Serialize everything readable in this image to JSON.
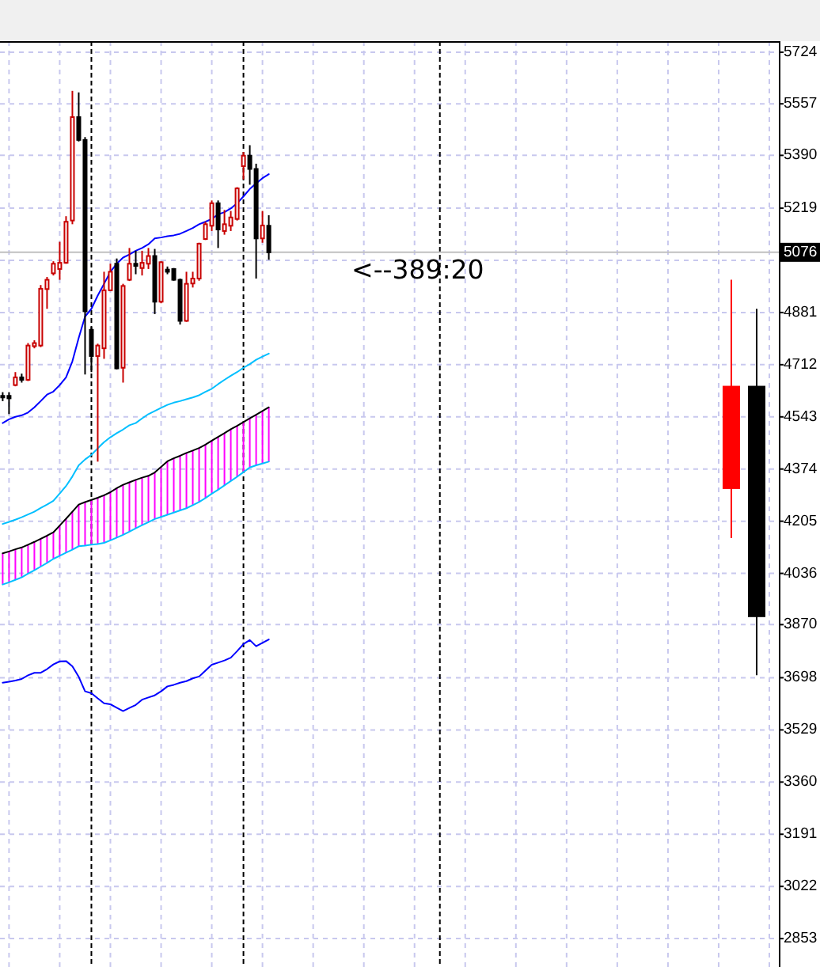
{
  "chart_data": {
    "type": "candlestick",
    "categories": [
      null,
      null,
      null,
      null,
      null,
      null,
      null,
      null,
      null,
      null,
      null,
      null,
      null,
      null,
      null,
      null,
      null,
      null,
      null,
      null,
      null,
      null,
      null,
      null,
      null,
      null,
      null,
      null,
      null,
      null,
      null,
      null,
      null,
      null,
      null,
      null,
      null,
      null,
      null,
      null,
      null,
      null,
      null,
      null,
      null,
      null,
      null,
      null,
      null,
      null,
      null,
      null,
      null,
      null,
      null,
      null,
      null,
      null,
      null,
      null,
      null,
      null,
      null,
      null,
      null,
      null,
      null,
      null,
      null,
      null,
      null,
      null,
      null,
      null,
      null,
      null,
      null,
      null,
      null,
      null,
      null,
      null,
      null,
      null,
      null,
      null,
      null,
      null,
      null,
      null,
      null,
      null,
      null,
      null,
      null,
      null,
      null,
      null,
      null,
      null,
      null,
      null,
      null,
      null,
      null,
      null,
      null,
      null,
      null,
      null,
      null,
      null,
      null,
      null,
      null,
      null,
      null,
      null,
      null,
      null,
      null,
      null,
      null
    ],
    "ohlc": [
      [
        4611,
        4623,
        4594,
        4608
      ],
      [
        4611,
        4623,
        4552,
        4603
      ],
      [
        4646,
        4688,
        4642,
        4671
      ],
      [
        4671,
        4683,
        4654,
        4663
      ],
      [
        4663,
        4782,
        4659,
        4774
      ],
      [
        4772,
        4791,
        4765,
        4782
      ],
      [
        4774,
        4970,
        4769,
        4958
      ],
      [
        4957,
        4996,
        4893,
        4987
      ],
      [
        5008,
        5047,
        5001,
        5039
      ],
      [
        5022,
        5110,
        4987,
        5042
      ],
      [
        5042,
        5193,
        5039,
        5175
      ],
      [
        5179,
        5599,
        5167,
        5514
      ],
      [
        5514,
        5594,
        5435,
        5440
      ],
      [
        5440,
        5449,
        4680,
        4885
      ],
      [
        4825,
        4834,
        4688,
        4740
      ],
      [
        4740,
        4780,
        4398,
        4774
      ],
      [
        4765,
        5013,
        4731,
        4953
      ],
      [
        4953,
        5039,
        4950,
        5013
      ],
      [
        5039,
        5056,
        4697,
        4700
      ],
      [
        4702,
        4974,
        4654,
        4967
      ],
      [
        4987,
        5090,
        4983,
        5039
      ],
      [
        5039,
        5081,
        5005,
        5032
      ],
      [
        5025,
        5081,
        5001,
        5042
      ],
      [
        5039,
        5090,
        5022,
        5064
      ],
      [
        5064,
        5087,
        4876,
        4916
      ],
      [
        4916,
        5047,
        4911,
        5044
      ],
      [
        5020,
        5030,
        5005,
        5013
      ],
      [
        5022,
        5025,
        4984,
        4987
      ],
      [
        4987,
        4991,
        4842,
        4854
      ],
      [
        4854,
        5013,
        4851,
        4974
      ],
      [
        4975,
        5013,
        4962,
        4991
      ],
      [
        4991,
        5107,
        4984,
        5104
      ],
      [
        5119,
        5175,
        5116,
        5167
      ],
      [
        5162,
        5244,
        5145,
        5235
      ],
      [
        5235,
        5244,
        5090,
        5150
      ],
      [
        5145,
        5213,
        5133,
        5167
      ],
      [
        5162,
        5210,
        5145,
        5189
      ],
      [
        5184,
        5287,
        5179,
        5283
      ],
      [
        5355,
        5401,
        5312,
        5389
      ],
      [
        5389,
        5423,
        5295,
        5346
      ],
      [
        5346,
        5363,
        4991,
        5121
      ],
      [
        5121,
        5210,
        5107,
        5163
      ],
      [
        5162,
        5196,
        5052,
        5076
      ],
      null,
      null,
      null,
      null,
      null,
      null,
      null,
      null,
      null,
      null,
      null,
      null,
      null,
      null,
      null,
      null,
      null,
      null,
      null,
      null,
      null,
      null,
      null,
      null,
      null,
      null,
      null,
      null,
      null,
      null,
      null,
      null,
      null,
      null,
      null,
      null,
      null,
      null,
      null,
      null,
      null,
      null,
      null,
      null,
      null,
      null,
      null,
      null,
      null,
      null,
      null,
      null,
      null,
      null,
      null,
      null,
      null,
      null,
      null,
      null,
      null,
      null,
      null,
      null,
      null,
      null,
      null,
      null,
      null,
      null,
      null,
      null,
      null,
      null,
      null,
      null,
      null,
      null,
      null,
      null
    ],
    "colors": [
      "#000000",
      "#000000",
      "#c80000",
      "#000000",
      "#c80000",
      "#c80000",
      "#c80000",
      "#c80000",
      "#c80000",
      "#c80000",
      "#c80000",
      "#c80000",
      "#000000",
      "#000000",
      "#000000",
      "#c80000",
      "#c80000",
      "#c80000",
      "#000000",
      "#c80000",
      "#c80000",
      "#000000",
      "#c80000",
      "#c80000",
      "#000000",
      "#c80000",
      "#000000",
      "#000000",
      "#000000",
      "#c80000",
      "#c80000",
      "#c80000",
      "#c80000",
      "#c80000",
      "#000000",
      "#c80000",
      "#c80000",
      "#c80000",
      "#c80000",
      "#000000",
      "#000000",
      "#c80000",
      "#000000",
      null,
      null,
      null,
      null,
      null,
      null,
      null,
      null,
      null,
      null,
      null,
      null,
      null,
      null,
      null,
      null,
      null,
      null,
      null,
      null,
      null,
      null,
      null,
      null,
      null,
      null,
      null,
      null,
      null,
      null,
      null,
      null,
      null,
      null,
      null,
      null,
      null,
      null,
      null,
      null,
      null,
      null,
      null,
      null,
      null,
      null,
      null,
      null,
      null,
      null,
      null,
      null,
      null,
      null,
      null,
      null,
      null,
      null,
      null,
      null,
      null,
      null,
      null,
      null,
      null,
      null,
      null,
      null,
      null,
      null,
      null,
      null,
      null,
      null,
      null,
      null,
      null,
      null,
      null,
      null
    ],
    "series": [
      {
        "type": "bar",
        "color": "#ff00ff",
        "base": [
          4000,
          4007,
          4015,
          4023,
          4035,
          4046,
          4058,
          4070,
          4083,
          4093,
          4103,
          4113,
          4124,
          4126,
          4129,
          4131,
          4135,
          4143,
          4152,
          4161,
          4171,
          4182,
          4192,
          4202,
          4212,
          4219,
          4226,
          4233,
          4240,
          4247,
          4257,
          4267,
          4280,
          4294,
          4307,
          4321,
          4335,
          4349,
          4364,
          4379,
          4386,
          4392,
          4398,
          null,
          null,
          null,
          null,
          null,
          null,
          null,
          null,
          null,
          null,
          null,
          null,
          null,
          null,
          null,
          null,
          null,
          null,
          null,
          null,
          null,
          null,
          null,
          null,
          null,
          null,
          null,
          null,
          null,
          null,
          null,
          null,
          null,
          null,
          null,
          null,
          null,
          null,
          null,
          null,
          null,
          null,
          null,
          null,
          null,
          null,
          null,
          null,
          null,
          null,
          null,
          null,
          null,
          null,
          null,
          null,
          null,
          null,
          null,
          null,
          null,
          null,
          null,
          null,
          null,
          null,
          null,
          null,
          null,
          null,
          null,
          null,
          null,
          null,
          null,
          null,
          null,
          null,
          null,
          null
        ],
        "values": [
          101,
          100,
          99,
          97,
          94,
          92,
          90,
          88,
          86,
          98,
          110,
          123,
          135,
          141,
          145,
          150,
          154,
          156,
          160,
          162,
          160,
          157,
          154,
          150,
          151,
          162,
          173,
          176,
          177,
          179,
          177,
          175,
          173,
          172,
          171,
          169,
          168,
          165,
          162,
          159,
          164,
          170,
          176,
          null,
          null,
          null,
          null,
          null,
          null,
          null,
          null,
          null,
          null,
          null,
          null,
          null,
          null,
          null,
          null,
          null,
          null,
          null,
          null,
          null,
          null,
          null,
          null,
          null,
          null,
          null,
          null,
          null,
          null,
          null,
          null,
          null,
          null,
          null,
          null,
          null,
          null,
          null,
          null,
          null,
          null,
          null,
          null,
          null,
          null,
          null,
          null,
          null,
          null,
          null,
          null,
          null,
          null,
          null,
          null,
          null,
          null,
          null,
          null,
          null,
          null,
          null,
          null,
          null,
          null,
          null,
          null,
          null,
          null,
          null,
          null,
          null,
          null,
          null,
          null,
          null,
          null,
          null,
          null
        ]
      },
      {
        "type": "line",
        "color": "#0000ff",
        "values": [
          4523,
          4535,
          4543,
          4548,
          4557,
          4574,
          4594,
          4615,
          4625,
          4646,
          4671,
          4723,
          4799,
          4868,
          4893,
          4936,
          4974,
          5013,
          5039,
          5059,
          5069,
          5081,
          5090,
          5102,
          5121,
          5124,
          5128,
          5131,
          5136,
          5145,
          5155,
          5167,
          5175,
          5184,
          5199,
          5206,
          5218,
          5235,
          5257,
          5281,
          5299,
          5316,
          5329,
          null,
          null,
          null,
          null,
          null,
          null,
          null,
          null,
          null,
          null,
          null,
          null,
          null,
          null,
          null,
          null,
          null,
          null,
          null,
          null,
          null,
          null,
          null,
          null,
          null,
          null,
          null,
          null,
          null,
          null,
          null,
          null,
          null,
          null,
          null,
          null,
          null,
          null,
          null,
          null,
          null,
          null,
          null,
          null,
          null,
          null,
          null,
          null,
          null,
          null,
          null,
          null,
          null,
          null,
          null,
          null,
          null,
          null,
          null,
          null,
          null,
          null,
          null,
          null,
          null,
          null,
          null,
          null,
          null,
          null,
          null,
          null,
          null,
          null,
          null,
          null,
          null,
          null,
          null,
          null
        ]
      },
      {
        "type": "line",
        "color": "#00bfff",
        "values": [
          4196,
          4203,
          4210,
          4218,
          4227,
          4236,
          4248,
          4259,
          4271,
          4295,
          4319,
          4350,
          4386,
          4405,
          4420,
          4441,
          4461,
          4477,
          4490,
          4502,
          4516,
          4523,
          4538,
          4552,
          4562,
          4572,
          4582,
          4589,
          4594,
          4600,
          4606,
          4613,
          4624,
          4634,
          4649,
          4663,
          4676,
          4688,
          4702,
          4714,
          4728,
          4738,
          4748,
          null,
          null,
          null,
          null,
          null,
          null,
          null,
          null,
          null,
          null,
          null,
          null,
          null,
          null,
          null,
          null,
          null,
          null,
          null,
          null,
          null,
          null,
          null,
          null,
          null,
          null,
          null,
          null,
          null,
          null,
          null,
          null,
          null,
          null,
          null,
          null,
          null,
          null,
          null,
          null,
          null,
          null,
          null,
          null,
          null,
          null,
          null,
          null,
          null,
          null,
          null,
          null,
          null,
          null,
          null,
          null,
          null,
          null,
          null,
          null,
          null,
          null,
          null,
          null,
          null,
          null,
          null,
          null,
          null,
          null,
          null,
          null,
          null,
          null,
          null,
          null,
          null,
          null,
          null,
          null
        ]
      },
      {
        "type": "line",
        "color": "#000000",
        "values": [
          4101,
          4107,
          4114,
          4120,
          4129,
          4138,
          4148,
          4158,
          4169,
          4191,
          4213,
          4236,
          4259,
          4267,
          4274,
          4281,
          4289,
          4299,
          4312,
          4323,
          4331,
          4339,
          4346,
          4352,
          4363,
          4381,
          4399,
          4409,
          4417,
          4426,
          4434,
          4442,
          4453,
          4466,
          4478,
          4490,
          4503,
          4514,
          4526,
          4538,
          4550,
          4562,
          4574,
          null,
          null,
          null,
          null,
          null,
          null,
          null,
          null,
          null,
          null,
          null,
          null,
          null,
          null,
          null,
          null,
          null,
          null,
          null,
          null,
          null,
          null,
          null,
          null,
          null,
          null,
          null,
          null,
          null,
          null,
          null,
          null,
          null,
          null,
          null,
          null,
          null,
          null,
          null,
          null,
          null,
          null,
          null,
          null,
          null,
          null,
          null,
          null,
          null,
          null,
          null,
          null,
          null,
          null,
          null,
          null,
          null,
          null,
          null,
          null,
          null,
          null,
          null,
          null,
          null,
          null,
          null,
          null,
          null,
          null,
          null,
          null,
          null,
          null,
          null,
          null,
          null,
          null,
          null,
          null
        ]
      },
      {
        "type": "line",
        "color": "#00bfff",
        "values": [
          4000,
          4007,
          4015,
          4023,
          4035,
          4046,
          4058,
          4070,
          4083,
          4093,
          4103,
          4113,
          4124,
          4126,
          4129,
          4131,
          4135,
          4143,
          4152,
          4161,
          4171,
          4182,
          4192,
          4202,
          4212,
          4219,
          4226,
          4233,
          4240,
          4247,
          4257,
          4267,
          4280,
          4294,
          4307,
          4321,
          4335,
          4349,
          4364,
          4379,
          4386,
          4392,
          4398,
          null,
          null,
          null,
          null,
          null,
          null,
          null,
          null,
          null,
          null,
          null,
          null,
          null,
          null,
          null,
          null,
          null,
          null,
          null,
          null,
          null,
          null,
          null,
          null,
          null,
          null,
          null,
          null,
          null,
          null,
          null,
          null,
          null,
          null,
          null,
          null,
          null,
          null,
          null,
          null,
          null,
          null,
          null,
          null,
          null,
          null,
          null,
          null,
          null,
          null,
          null,
          null,
          null,
          null,
          null,
          null,
          null,
          null,
          null,
          null,
          null,
          null,
          null,
          null,
          null,
          null,
          null,
          null,
          null,
          null,
          null,
          null,
          null,
          null,
          null,
          null,
          null,
          null,
          null,
          null
        ]
      },
      {
        "type": "line",
        "color": "#0000ff",
        "values": [
          3682,
          3685,
          3689,
          3694,
          3706,
          3714,
          3714,
          3726,
          3741,
          3751,
          3752,
          3735,
          3701,
          3654,
          3648,
          3631,
          3615,
          3612,
          3601,
          3590,
          3600,
          3610,
          3627,
          3634,
          3641,
          3654,
          3670,
          3675,
          3682,
          3687,
          3696,
          3702,
          3721,
          3740,
          3747,
          3754,
          3763,
          3784,
          3807,
          3820,
          3800,
          3811,
          3822,
          null,
          null,
          null,
          null,
          null,
          null,
          null,
          null,
          null,
          null,
          null,
          null,
          null,
          null,
          null,
          null,
          null,
          null,
          null,
          null,
          null,
          null,
          null,
          null,
          null,
          null,
          null,
          null,
          null,
          null,
          null,
          null,
          null,
          null,
          null,
          null,
          null,
          null,
          null,
          null,
          null,
          null,
          null,
          null,
          null,
          null,
          null,
          null,
          null,
          null,
          null,
          null,
          null,
          null,
          null,
          null,
          null,
          null,
          null,
          null,
          null,
          null,
          null,
          null,
          null,
          null,
          null,
          null,
          null,
          null,
          null,
          null,
          null,
          null,
          null,
          null,
          null,
          null,
          null,
          null
        ]
      },
      {
        "type": "candlestick",
        "ohlc": [
          null,
          null,
          null,
          null,
          null,
          null,
          null,
          null,
          null,
          null,
          null,
          null,
          null,
          null,
          null,
          null,
          null,
          null,
          null,
          null,
          null,
          null,
          null,
          null,
          null,
          null,
          null,
          null,
          null,
          null,
          null,
          null,
          null,
          null,
          null,
          null,
          null,
          null,
          null,
          null,
          null,
          null,
          null,
          null,
          null,
          null,
          null,
          null,
          null,
          null,
          null,
          null,
          null,
          null,
          null,
          null,
          null,
          null,
          null,
          null,
          null,
          null,
          null,
          null,
          null,
          null,
          null,
          null,
          null,
          null,
          null,
          null,
          null,
          null,
          null,
          null,
          null,
          null,
          null,
          null,
          null,
          null,
          null,
          null,
          null,
          null,
          null,
          null,
          null,
          null,
          null,
          null,
          null,
          null,
          null,
          null,
          null,
          null,
          null,
          null,
          null,
          null,
          null,
          null,
          null,
          null,
          null,
          null,
          null,
          null,
          null,
          null,
          null,
          null,
          null,
          [
            4312,
            4987,
            4150,
            4641
          ],
          null,
          null,
          null,
          [
            4641,
            4893,
            3706,
            3897
          ],
          null,
          null,
          null
        ],
        "colors": [
          null,
          null,
          null,
          null,
          null,
          null,
          null,
          null,
          null,
          null,
          null,
          null,
          null,
          null,
          null,
          null,
          null,
          null,
          null,
          null,
          null,
          null,
          null,
          null,
          null,
          null,
          null,
          null,
          null,
          null,
          null,
          null,
          null,
          null,
          null,
          null,
          null,
          null,
          null,
          null,
          null,
          null,
          null,
          null,
          null,
          null,
          null,
          null,
          null,
          null,
          null,
          null,
          null,
          null,
          null,
          null,
          null,
          null,
          null,
          null,
          null,
          null,
          null,
          null,
          null,
          null,
          null,
          null,
          null,
          null,
          null,
          null,
          null,
          null,
          null,
          null,
          null,
          null,
          null,
          null,
          null,
          null,
          null,
          null,
          null,
          null,
          null,
          null,
          null,
          null,
          null,
          null,
          null,
          null,
          null,
          null,
          null,
          null,
          null,
          null,
          null,
          null,
          null,
          null,
          null,
          null,
          null,
          null,
          null,
          null,
          null,
          null,
          null,
          null,
          null,
          "#ff0000",
          null,
          null,
          null,
          "#000000",
          null,
          null,
          null
        ]
      }
    ],
    "ylim": [
      2761,
      5760
    ],
    "yticks": [
      2853,
      3022,
      3191,
      3360,
      3529,
      3698,
      3870,
      4036,
      4205,
      4374,
      4543,
      4712,
      4881,
      {
        "value": 5050,
        "label": null
      },
      5219,
      5390,
      5557,
      5724
    ],
    "grid": true,
    "tick_labels": "y",
    "ref_lines": [
      {
        "axis": "y",
        "value": 5076,
        "label": "5076",
        "color": "#c0c0c0"
      }
    ],
    "annotations": [
      "<--389:20"
    ]
  }
}
